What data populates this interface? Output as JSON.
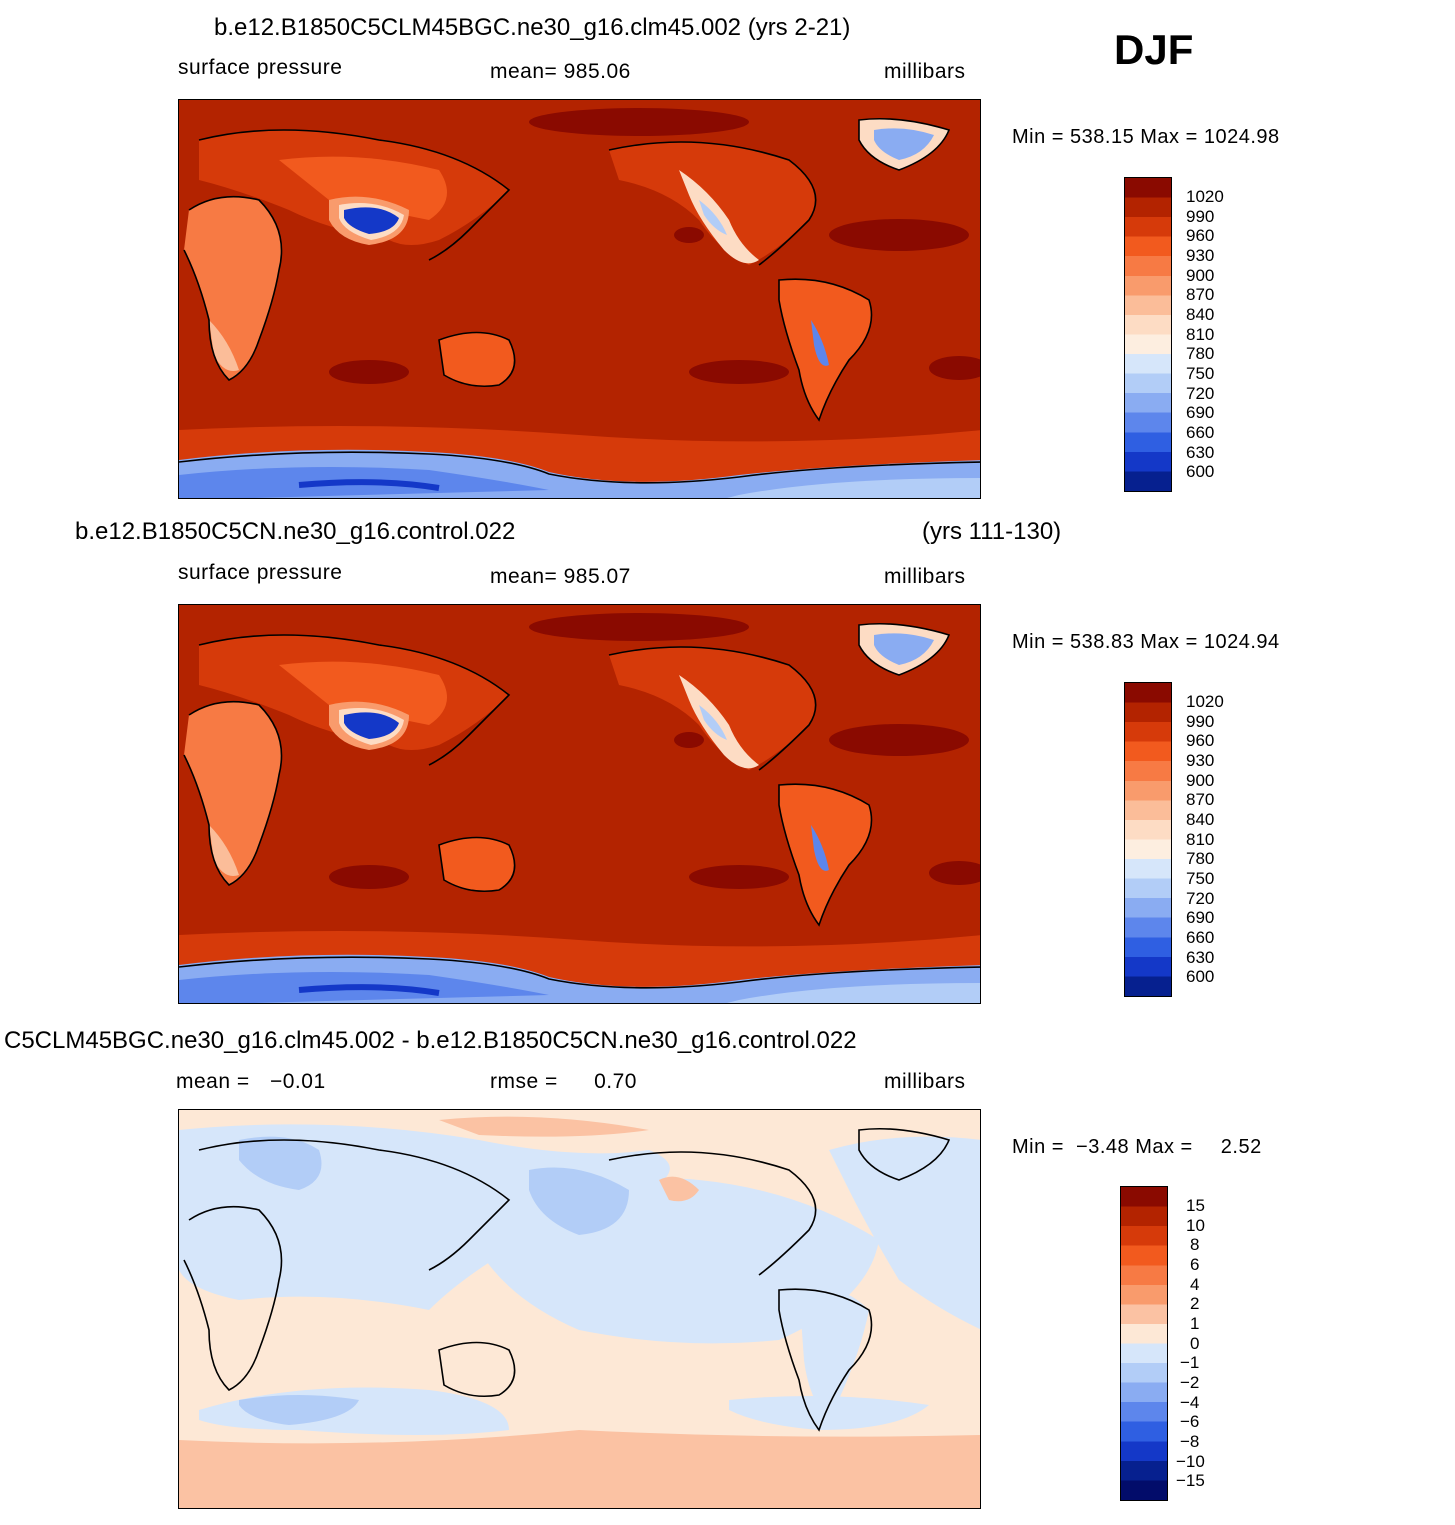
{
  "season": "DJF",
  "panels": [
    {
      "title": "b.e12.B1850C5CLM45BGC.ne30_g16.clm45.002 (yrs 2-21)",
      "title_right": "",
      "variable": "surface pressure",
      "stat_left_label": "",
      "stat_left_value": "",
      "stat_mid": "mean= 985.06",
      "stat_mid_value": "",
      "units": "millibars",
      "min_label": "Min =",
      "min_value": "538.15",
      "max_label": "Max =",
      "max_value": "1024.98",
      "legend_labels": [
        "1020",
        "990",
        "960",
        "930",
        "900",
        "870",
        "840",
        "810",
        "780",
        "750",
        "720",
        "690",
        "660",
        "630",
        "600"
      ]
    },
    {
      "title": "b.e12.B1850C5CN.ne30_g16.control.022",
      "title_right": "(yrs 111-130)",
      "variable": "surface pressure",
      "stat_mid": "mean= 985.07",
      "units": "millibars",
      "min_label": "Min =",
      "min_value": "538.83",
      "max_label": "Max =",
      "max_value": "1024.94",
      "legend_labels": [
        "1020",
        "990",
        "960",
        "930",
        "900",
        "870",
        "840",
        "810",
        "780",
        "750",
        "720",
        "690",
        "660",
        "630",
        "600"
      ]
    },
    {
      "title": "C5CLM45BGC.ne30_g16.clm45.002 - b.e12.B1850C5CN.ne30_g16.control.022",
      "stat_left_label": "mean =",
      "stat_left_value": "−0.01",
      "stat_mid_label": "rmse =",
      "stat_mid_value": "0.70",
      "units": "millibars",
      "min_label": "Min =",
      "min_value": "−3.48",
      "max_label": "Max =",
      "max_value": "2.52",
      "legend_labels": [
        "15",
        "10",
        "8",
        "6",
        "4",
        "2",
        "1",
        "0",
        "−1",
        "−2",
        "−4",
        "−6",
        "−8",
        "−10",
        "−15"
      ]
    }
  ],
  "colors": {
    "abs_scale": [
      "#8a0a00",
      "#b32300",
      "#d63a0a",
      "#f25a1e",
      "#f77a44",
      "#f99b6c",
      "#fbbd99",
      "#fddcc4",
      "#fdeee0",
      "#d6e6fa",
      "#b2cdf7",
      "#8aacf2",
      "#5d86ec",
      "#2f5fe2",
      "#1438c8",
      "#06208f",
      "#020c6a"
    ],
    "diff_scale": [
      "#8a0a00",
      "#b32300",
      "#d63a0a",
      "#f25a1e",
      "#f77a44",
      "#f99b6c",
      "#fbc2a3",
      "#fde8d6",
      "#d6e6fa",
      "#b2cdf7",
      "#8aacf2",
      "#5d86ec",
      "#2f5fe2",
      "#1438c8",
      "#06208f",
      "#020c6a"
    ],
    "ocean_abs": "#b32300",
    "ocean_diff_pos": "#fde8d6",
    "ocean_diff_neg": "#d6e6fa",
    "coast": "#000000"
  }
}
